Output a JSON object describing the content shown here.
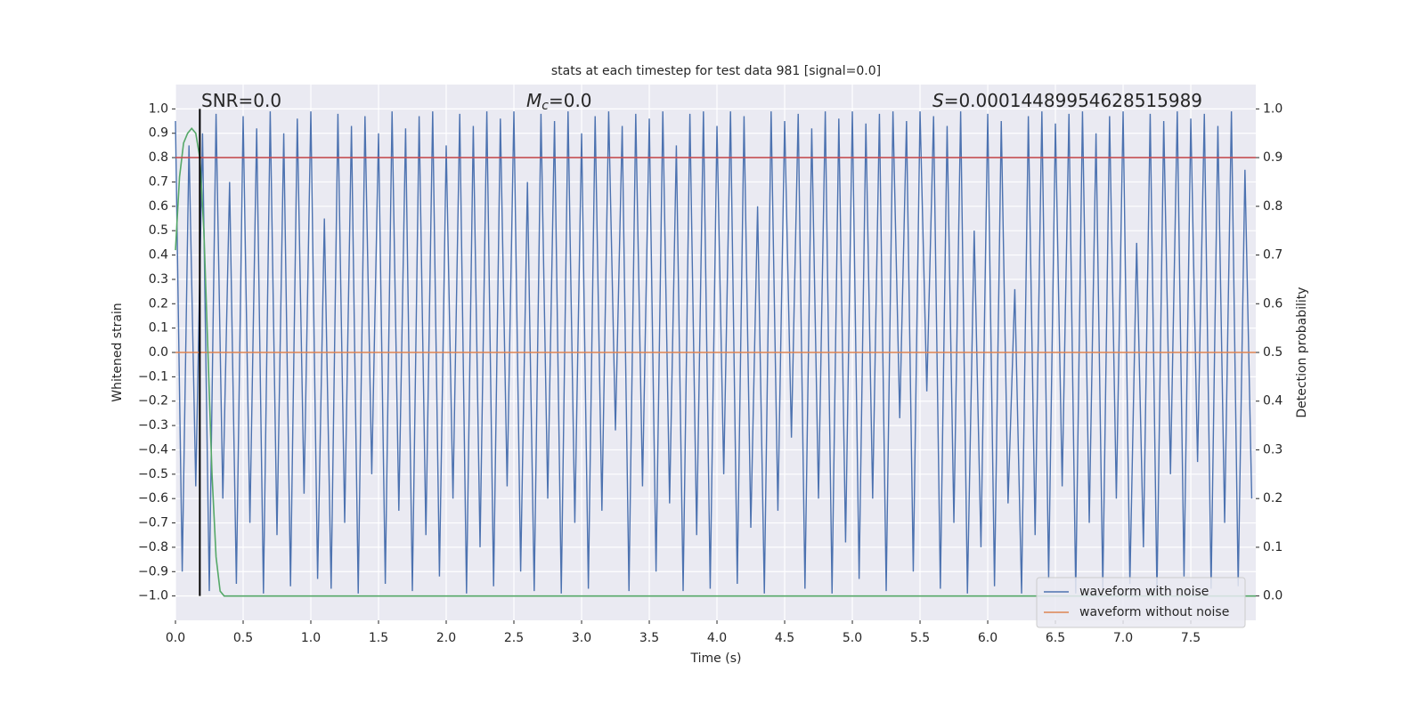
{
  "chart_data": {
    "type": "line",
    "title": "stats at each timestep for test data 981 [signal=0.0]",
    "xlabel": "Time (s)",
    "ylabel": "Whitened strain",
    "y2label": "Detection probability",
    "annotations": [
      {
        "text": "SNR=0.0"
      },
      {
        "symbol": "M",
        "subscript": "c",
        "text": "=0.0"
      },
      {
        "symbol": "S",
        "text": "=0.00014489954628515989"
      }
    ],
    "xlim": [
      0,
      7.98
    ],
    "ylim": [
      -1.1,
      1.1
    ],
    "y2lim": [
      -0.05,
      1.05
    ],
    "xticks": [
      {
        "value": 0,
        "label": "0.0"
      },
      0.5,
      {
        "value": 1,
        "label": "1.0"
      },
      1.5,
      {
        "value": 2,
        "label": "2.0"
      },
      2.5,
      {
        "value": 3,
        "label": "3.0"
      },
      3.5,
      {
        "value": 4,
        "label": "4.0"
      },
      4.5,
      {
        "value": 5,
        "label": "5.0"
      },
      5.5,
      {
        "value": 6,
        "label": "6.0"
      },
      6.5,
      {
        "value": 7,
        "label": "7.0"
      },
      7.5
    ],
    "yticks": [
      {
        "value": -1,
        "label": "−1.0"
      },
      {
        "value": -0.9,
        "label": "−0.9"
      },
      {
        "value": -0.8,
        "label": "−0.8"
      },
      {
        "value": -0.7,
        "label": "−0.7"
      },
      {
        "value": -0.6,
        "label": "−0.6"
      },
      {
        "value": -0.5,
        "label": "−0.5"
      },
      {
        "value": -0.4,
        "label": "−0.4"
      },
      {
        "value": -0.3,
        "label": "−0.3"
      },
      {
        "value": -0.2,
        "label": "−0.2"
      },
      {
        "value": -0.1,
        "label": "−0.1"
      },
      {
        "value": 0,
        "label": "0.0"
      },
      0.1,
      0.2,
      0.3,
      0.4,
      0.5,
      0.6,
      0.7,
      0.8,
      0.9,
      {
        "value": 1,
        "label": "1.0"
      }
    ],
    "y2ticks": [
      {
        "value": 0,
        "label": "0.0"
      },
      0.1,
      0.2,
      0.3,
      0.4,
      0.5,
      0.6,
      0.7,
      0.8,
      0.9,
      {
        "value": 1,
        "label": "1.0"
      }
    ],
    "grid": true,
    "legend": "lower right",
    "series": [
      {
        "name": "waveform with noise",
        "color": "#4c72b0",
        "x": [
          0,
          0.05,
          0.1,
          0.15,
          0.2,
          0.25,
          0.3,
          0.35,
          0.4,
          0.45,
          0.5,
          0.55,
          0.6,
          0.65,
          0.7,
          0.75,
          0.8,
          0.85,
          0.9,
          0.95,
          1,
          1.05,
          1.1,
          1.15,
          1.2,
          1.25,
          1.3,
          1.35,
          1.4,
          1.45,
          1.5,
          1.55,
          1.6,
          1.65,
          1.7,
          1.75,
          1.8,
          1.85,
          1.9,
          1.95,
          2,
          2.05,
          2.1,
          2.15,
          2.2,
          2.25,
          2.3,
          2.35,
          2.4,
          2.45,
          2.5,
          2.55,
          2.6,
          2.65,
          2.7,
          2.75,
          2.8,
          2.85,
          2.9,
          2.95,
          3,
          3.05,
          3.1,
          3.15,
          3.2,
          3.25,
          3.3,
          3.35,
          3.4,
          3.45,
          3.5,
          3.55,
          3.6,
          3.65,
          3.7,
          3.75,
          3.8,
          3.85,
          3.9,
          3.95,
          4,
          4.05,
          4.1,
          4.15,
          4.2,
          4.25,
          4.3,
          4.35,
          4.4,
          4.45,
          4.5,
          4.55,
          4.6,
          4.65,
          4.7,
          4.75,
          4.8,
          4.85,
          4.9,
          4.95,
          5,
          5.05,
          5.1,
          5.15,
          5.2,
          5.25,
          5.3,
          5.35,
          5.4,
          5.45,
          5.5,
          5.55,
          5.6,
          5.65,
          5.7,
          5.75,
          5.8,
          5.85,
          5.9,
          5.95,
          6,
          6.05,
          6.1,
          6.15,
          6.2,
          6.25,
          6.3,
          6.35,
          6.4,
          6.45,
          6.5,
          6.55,
          6.6,
          6.65,
          6.7,
          6.75,
          6.8,
          6.85,
          6.9,
          6.95,
          7,
          7.05,
          7.1,
          7.15,
          7.2,
          7.25,
          7.3,
          7.35,
          7.4,
          7.45,
          7.5,
          7.55,
          7.6,
          7.65,
          7.7,
          7.75,
          7.8,
          7.85,
          7.9,
          7.95
        ],
        "values": [
          0.95,
          -0.9,
          0.85,
          -0.55,
          0.9,
          -0.98,
          0.98,
          -0.6,
          0.7,
          -0.95,
          0.97,
          -0.7,
          0.92,
          -0.99,
          0.99,
          -0.75,
          0.9,
          -0.96,
          0.96,
          -0.58,
          0.99,
          -0.93,
          0.55,
          -0.97,
          0.98,
          -0.7,
          0.93,
          -0.99,
          0.97,
          -0.5,
          0.9,
          -0.95,
          0.99,
          -0.65,
          0.92,
          -0.98,
          0.97,
          -0.75,
          0.99,
          -0.92,
          0.85,
          -0.6,
          0.98,
          -0.99,
          0.93,
          -0.8,
          0.99,
          -0.96,
          0.96,
          -0.55,
          0.99,
          -0.9,
          0.7,
          -0.98,
          0.98,
          -0.6,
          0.95,
          -0.99,
          0.99,
          -0.7,
          0.9,
          -0.97,
          0.97,
          -0.65,
          0.99,
          -0.32,
          0.93,
          -0.98,
          0.98,
          -0.55,
          0.96,
          -0.9,
          0.99,
          -0.62,
          0.85,
          -0.98,
          0.98,
          -0.75,
          0.99,
          -0.97,
          0.93,
          -0.5,
          0.99,
          -0.95,
          0.97,
          -0.72,
          0.6,
          -0.99,
          0.99,
          -0.65,
          0.95,
          -0.35,
          0.98,
          -0.97,
          0.92,
          -0.6,
          0.99,
          -0.99,
          0.96,
          -0.78,
          0.99,
          -0.93,
          0.94,
          -0.6,
          0.98,
          -0.98,
          0.99,
          -0.27,
          0.95,
          -0.9,
          0.99,
          -0.16,
          0.97,
          -0.97,
          0.93,
          -0.7,
          0.99,
          -0.99,
          0.5,
          -0.8,
          0.98,
          -0.96,
          0.95,
          -0.62,
          0.26,
          -0.99,
          0.97,
          -0.75,
          0.99,
          -0.93,
          0.94,
          -0.55,
          0.98,
          -0.99,
          0.99,
          -0.7,
          0.9,
          -0.97,
          0.97,
          -0.6,
          0.99,
          -0.95,
          0.45,
          -0.8,
          0.98,
          -0.99,
          0.95,
          -0.5,
          0.99,
          -0.92,
          0.96,
          -0.45,
          0.98,
          -0.97,
          0.93,
          -0.7,
          0.99,
          -0.96,
          0.75,
          -0.6
        ]
      },
      {
        "name": "waveform without noise",
        "color": "#dd8452",
        "x": [
          0,
          7.98
        ],
        "values": [
          0,
          0
        ]
      },
      {
        "color": "#55a868",
        "axis": "y2",
        "x": [
          0,
          0.03,
          0.06,
          0.09,
          0.12,
          0.15,
          0.18,
          0.21,
          0.24,
          0.27,
          0.3,
          0.33,
          0.36,
          0.4,
          7.98
        ],
        "values": [
          0.71,
          0.86,
          0.93,
          0.95,
          0.96,
          0.95,
          0.9,
          0.75,
          0.5,
          0.25,
          0.08,
          0.01,
          0,
          0,
          0
        ]
      }
    ],
    "hlines": [
      {
        "value": 0.9,
        "axis": "y2",
        "color": "#c44e52"
      }
    ],
    "vlines": [
      {
        "value": 0.18,
        "ymin": -1,
        "ymax": 1,
        "color": "#000000"
      }
    ]
  }
}
